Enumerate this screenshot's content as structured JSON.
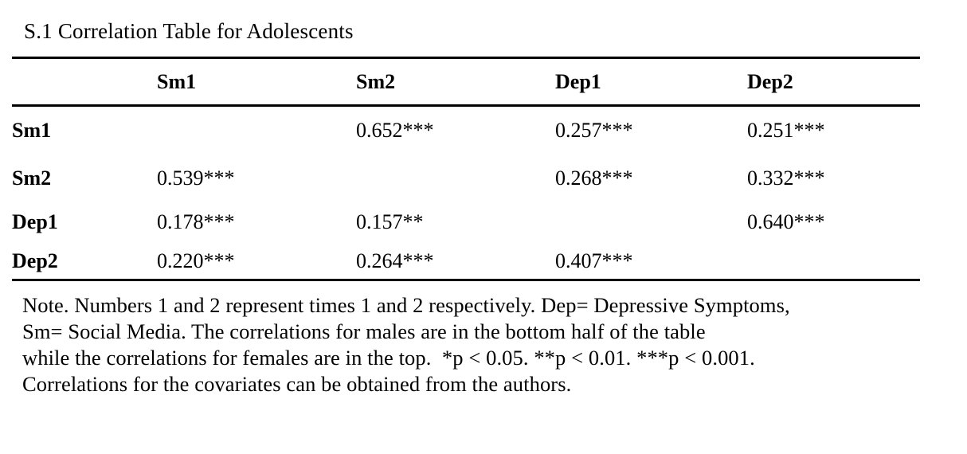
{
  "title": "S.1 Correlation Table for Adolescents",
  "table": {
    "corner": "",
    "columns": [
      "Sm1",
      "Sm2",
      "Dep1",
      "Dep2"
    ],
    "rows": [
      {
        "label": "Sm1",
        "cells": [
          "",
          "0.652***",
          "0.257***",
          "0.251***"
        ]
      },
      {
        "label": "Sm2",
        "cells": [
          "0.539***",
          "",
          "0.268***",
          "0.332***"
        ]
      },
      {
        "label": "Dep1",
        "cells": [
          "0.178***",
          "0.157**",
          "",
          "0.640***"
        ]
      },
      {
        "label": "Dep2",
        "cells": [
          "0.220***",
          "0.264***",
          "0.407***",
          ""
        ]
      }
    ]
  },
  "note": {
    "lines": [
      "Note. Numbers 1 and 2 represent times 1 and 2 respectively. Dep= Depressive Symptoms,",
      "Sm= Social Media. The correlations for males are in the bottom half of the table",
      "while the correlations for females are in the top.  *p < 0.05. **p < 0.01. ***p < 0.001.",
      "Correlations for the covariates can be obtained from the authors."
    ]
  },
  "chart_data": {
    "type": "table",
    "title": "S.1 Correlation Table for Adolescents",
    "columns": [
      "",
      "Sm1",
      "Sm2",
      "Dep1",
      "Dep2"
    ],
    "rows": [
      [
        "Sm1",
        null,
        0.652,
        0.257,
        0.251
      ],
      [
        "Sm2",
        0.539,
        null,
        0.268,
        0.332
      ],
      [
        "Dep1",
        0.178,
        0.157,
        null,
        0.64
      ],
      [
        "Dep2",
        0.22,
        0.264,
        0.407,
        null
      ]
    ],
    "significance": {
      "Sm1": {
        "Sm2": "***",
        "Dep1": "***",
        "Dep2": "***"
      },
      "Sm2": {
        "Sm1": "***",
        "Dep1": "***",
        "Dep2": "***"
      },
      "Dep1": {
        "Sm1": "***",
        "Sm2": "**",
        "Dep2": "***"
      },
      "Dep2": {
        "Sm1": "***",
        "Sm2": "***",
        "Dep1": "***"
      }
    }
  },
  "colors": {
    "text": "#000000",
    "background": "#ffffff",
    "rule": "#000000"
  }
}
